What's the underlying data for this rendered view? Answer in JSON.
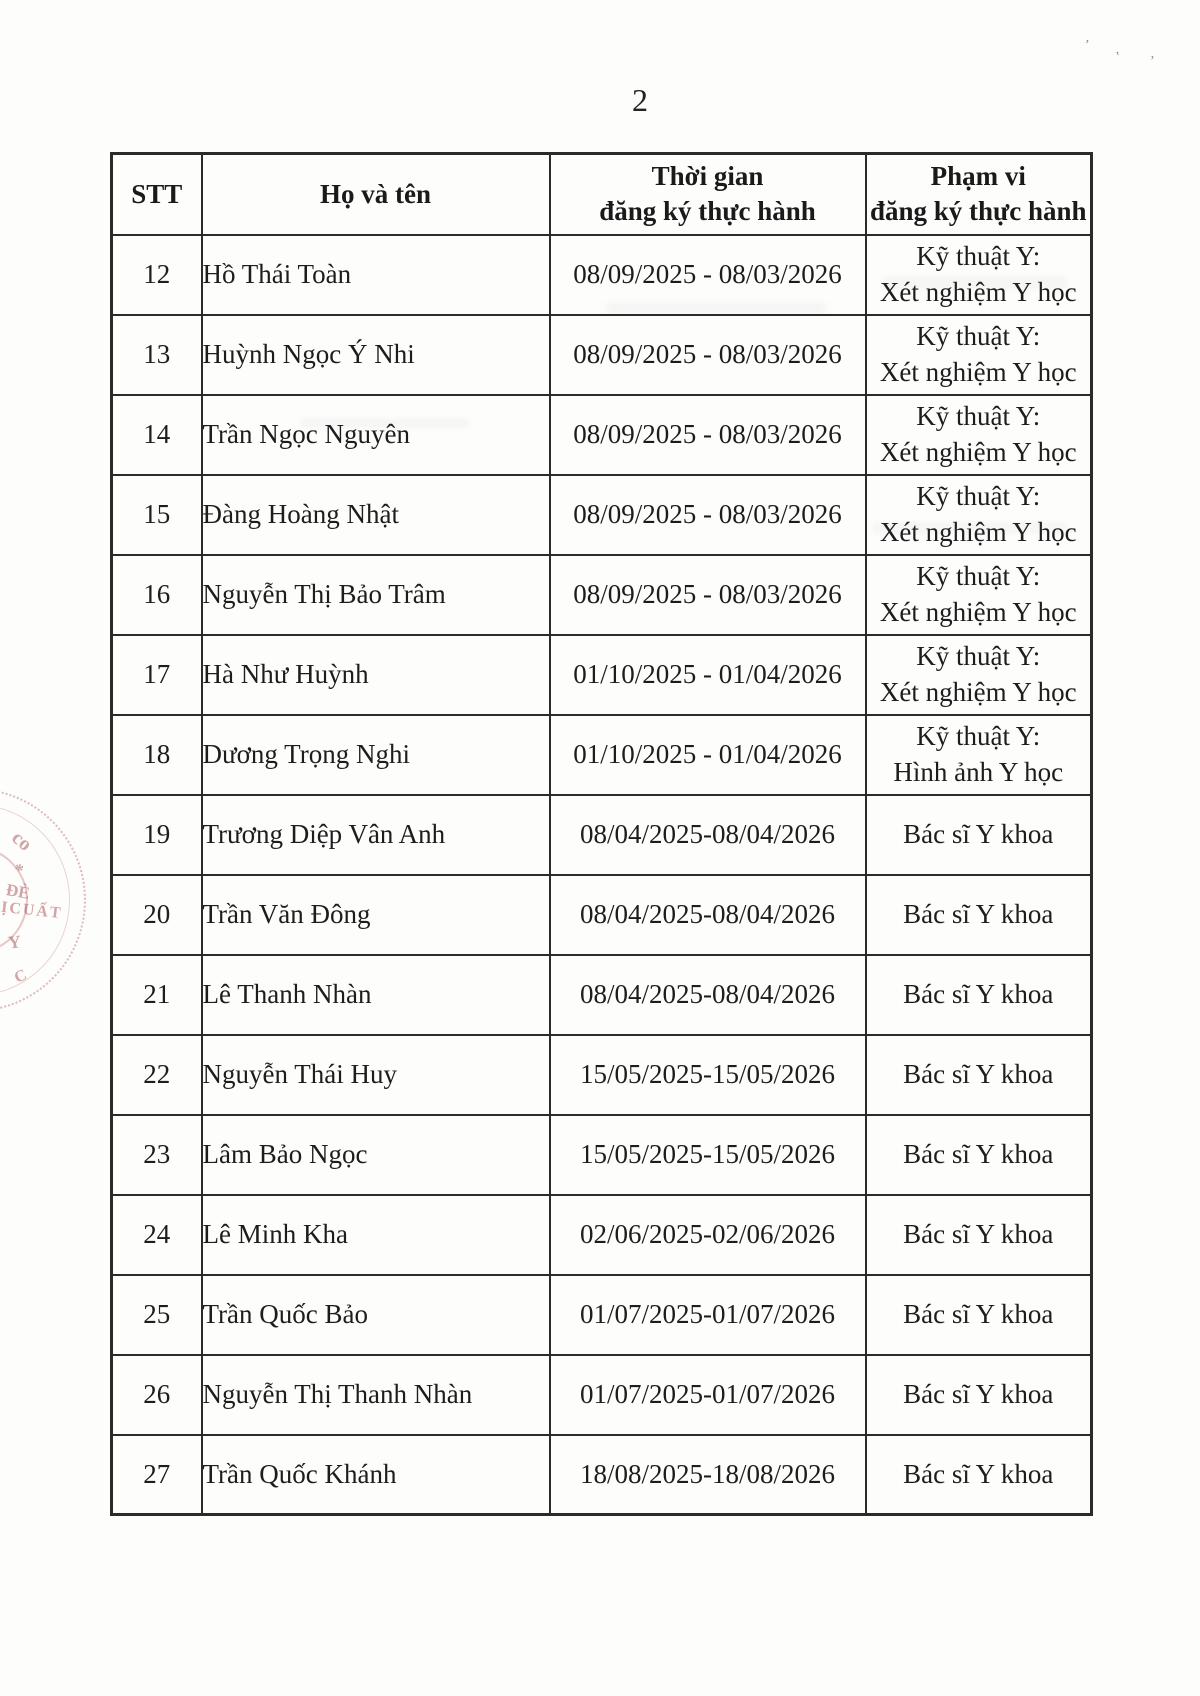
{
  "page": {
    "number": "2"
  },
  "table": {
    "headers": {
      "stt": "STT",
      "name": "Họ và tên",
      "time": "Thời gian\nđăng ký thực hành",
      "scope": "Phạm vi\nđăng ký thực hành"
    },
    "rows": [
      {
        "stt": "12",
        "name": "Hồ Thái Toàn",
        "time": "08/09/2025 - 08/03/2026",
        "scope": "Kỹ thuật Y:\nXét nghiệm Y học"
      },
      {
        "stt": "13",
        "name": "Huỳnh Ngọc Ý Nhi",
        "time": "08/09/2025 - 08/03/2026",
        "scope": "Kỹ thuật Y:\nXét nghiệm Y học"
      },
      {
        "stt": "14",
        "name": "Trần Ngọc Nguyên",
        "time": "08/09/2025 - 08/03/2026",
        "scope": "Kỹ thuật Y:\nXét nghiệm Y học"
      },
      {
        "stt": "15",
        "name": "Đàng Hoàng Nhật",
        "time": "08/09/2025 - 08/03/2026",
        "scope": "Kỹ thuật Y:\nXét nghiệm Y học"
      },
      {
        "stt": "16",
        "name": "Nguyễn Thị Bảo Trâm",
        "time": "08/09/2025 - 08/03/2026",
        "scope": "Kỹ thuật Y:\nXét nghiệm Y học"
      },
      {
        "stt": "17",
        "name": "Hà Như Huỳnh",
        "time": "01/10/2025 - 01/04/2026",
        "scope": "Kỹ thuật Y:\nXét nghiệm Y học"
      },
      {
        "stt": "18",
        "name": "Dương Trọng Nghi",
        "time": "01/10/2025 - 01/04/2026",
        "scope": "Kỹ thuật Y:\nHình ảnh Y học"
      },
      {
        "stt": "19",
        "name": "Trương Diệp Vân Anh",
        "time": "08/04/2025-08/04/2026",
        "scope": "Bác sĩ Y khoa"
      },
      {
        "stt": "20",
        "name": "Trần Văn Đông",
        "time": "08/04/2025-08/04/2026",
        "scope": "Bác sĩ Y khoa"
      },
      {
        "stt": "21",
        "name": "Lê Thanh Nhàn",
        "time": "08/04/2025-08/04/2026",
        "scope": "Bác sĩ Y khoa"
      },
      {
        "stt": "22",
        "name": "Nguyễn Thái Huy",
        "time": "15/05/2025-15/05/2026",
        "scope": "Bác sĩ Y khoa"
      },
      {
        "stt": "23",
        "name": "Lâm Bảo Ngọc",
        "time": "15/05/2025-15/05/2026",
        "scope": "Bác sĩ Y khoa"
      },
      {
        "stt": "24",
        "name": "Lê Minh Kha",
        "time": "02/06/2025-02/06/2026",
        "scope": "Bác sĩ Y khoa"
      },
      {
        "stt": "25",
        "name": "Trần Quốc Bảo",
        "time": "01/07/2025-01/07/2026",
        "scope": "Bác sĩ Y khoa"
      },
      {
        "stt": "26",
        "name": "Nguyễn Thị Thanh Nhàn",
        "time": "01/07/2025-01/07/2026",
        "scope": "Bác sĩ Y khoa"
      },
      {
        "stt": "27",
        "name": "Trần Quốc Khánh",
        "time": "18/08/2025-18/08/2026",
        "scope": "Bác sĩ Y khoa"
      }
    ]
  },
  "stamp": {
    "color": "#b8605f",
    "fragments": [
      "co",
      "*",
      "ĐÈ",
      "ỊCUẤT",
      "Y",
      "C"
    ]
  },
  "artifacts": {
    "marks": [
      "ʼ",
      "ʽ",
      "ʼ"
    ]
  }
}
